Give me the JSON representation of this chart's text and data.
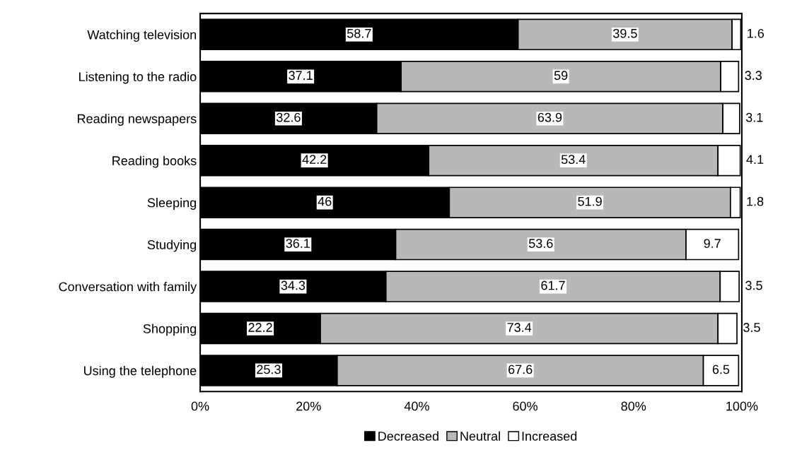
{
  "chart_data": {
    "type": "bar",
    "orientation": "horizontal",
    "stacked": true,
    "categories": [
      "Watching television",
      "Listening to the radio",
      "Reading newspapers",
      "Reading books",
      "Sleeping",
      "Studying",
      "Conversation with family",
      "Shopping",
      "Using the telephone"
    ],
    "series": [
      {
        "name": "Decreased",
        "color": "#000000",
        "values": [
          58.7,
          37.1,
          32.6,
          42.2,
          46,
          36.1,
          34.3,
          22.2,
          25.3
        ]
      },
      {
        "name": "Neutral",
        "color": "#b8b8b8",
        "values": [
          39.5,
          59,
          63.9,
          53.4,
          51.9,
          53.6,
          61.7,
          73.4,
          67.6
        ]
      },
      {
        "name": "Increased",
        "color": "#ffffff",
        "values": [
          1.6,
          3.3,
          3.1,
          4.1,
          1.8,
          9.7,
          3.5,
          3.5,
          6.5
        ]
      }
    ],
    "xlim": [
      0,
      100
    ],
    "xticks": [
      {
        "value": 0,
        "label": "0%"
      },
      {
        "value": 20,
        "label": "20%"
      },
      {
        "value": 40,
        "label": "40%"
      },
      {
        "value": 60,
        "label": "60%"
      },
      {
        "value": 80,
        "label": "80%"
      },
      {
        "value": 100,
        "label": "100%"
      }
    ],
    "data_labels": true,
    "legend": "bottom",
    "grid": false
  }
}
